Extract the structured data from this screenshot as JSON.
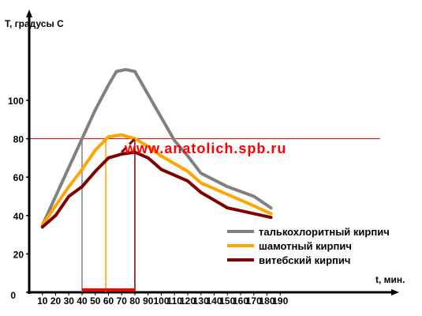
{
  "chart_data": {
    "type": "line",
    "ylabel": "T, градусы С",
    "xlabel": "t, мин.",
    "watermark": "www.anatolich.spb.ru",
    "xlim": [
      0,
      190
    ],
    "ylim": [
      0,
      110
    ],
    "x_ticks": [
      "10",
      "20",
      "30",
      "40",
      "50",
      "60",
      "70",
      "80",
      "90",
      "100",
      "110",
      "120",
      "130",
      "140",
      "150",
      "160",
      "170",
      "180",
      "190"
    ],
    "y_ticks": [
      "0",
      "20",
      "40",
      "60",
      "80",
      "100"
    ],
    "reference_line_y": 80,
    "series": [
      {
        "name": "талькохлоритный кирпич",
        "color": "#808080",
        "points": [
          [
            10,
            35
          ],
          [
            40,
            80
          ],
          [
            50,
            95
          ],
          [
            60,
            108
          ],
          [
            66,
            115
          ],
          [
            73,
            116
          ],
          [
            80,
            115
          ],
          [
            90,
            103
          ],
          [
            100,
            91
          ],
          [
            110,
            79
          ],
          [
            120,
            71
          ],
          [
            130,
            62
          ],
          [
            150,
            55
          ],
          [
            170,
            50
          ],
          [
            183,
            44
          ]
        ]
      },
      {
        "name": "шамотный кирпич",
        "color": "#ffa500",
        "points": [
          [
            10,
            35
          ],
          [
            20,
            45
          ],
          [
            30,
            55
          ],
          [
            40,
            64
          ],
          [
            50,
            74
          ],
          [
            60,
            81
          ],
          [
            70,
            82
          ],
          [
            80,
            80
          ],
          [
            90,
            76
          ],
          [
            100,
            71
          ],
          [
            120,
            63
          ],
          [
            130,
            57
          ],
          [
            150,
            51
          ],
          [
            170,
            45
          ],
          [
            183,
            41
          ]
        ]
      },
      {
        "name": "витебский кирпич",
        "color": "#800000",
        "points": [
          [
            10,
            34
          ],
          [
            20,
            40
          ],
          [
            30,
            50
          ],
          [
            40,
            55
          ],
          [
            50,
            63
          ],
          [
            60,
            70
          ],
          [
            70,
            72
          ],
          [
            80,
            73
          ],
          [
            90,
            70
          ],
          [
            100,
            64
          ],
          [
            120,
            58
          ],
          [
            130,
            52
          ],
          [
            150,
            44
          ],
          [
            170,
            41
          ],
          [
            183,
            39
          ]
        ]
      }
    ],
    "dashed_extension": {
      "color": "#800000",
      "points": [
        [
          70,
          73
        ],
        [
          80,
          80
        ]
      ]
    },
    "markers": [
      {
        "x": 40,
        "y": 80,
        "color": "#808080"
      },
      {
        "x": 58,
        "y": 81,
        "color": "#ffa500"
      },
      {
        "x": 80,
        "y": 80,
        "color": "#800000"
      }
    ],
    "x_range_bar": {
      "from": 40,
      "to": 80,
      "color": "#ff0000"
    },
    "legend_position": "bottom-right"
  }
}
